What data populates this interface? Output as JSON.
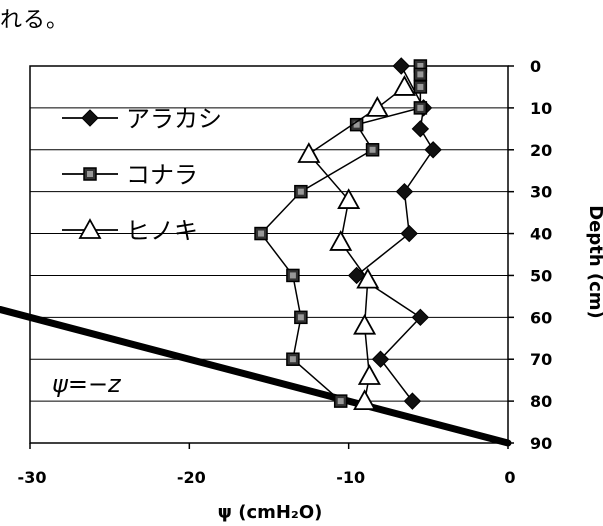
{
  "header_text": "れる。",
  "chart_data": {
    "type": "line",
    "orientation": "depth-profile",
    "xlabel": "ψ (cmH₂O)",
    "ylabel": "Depth (cm)",
    "xlim": [
      -30,
      0
    ],
    "ylim": [
      0,
      90
    ],
    "x_ticks": [
      "-30",
      "-20",
      "-10",
      "0"
    ],
    "y_ticks": [
      "0",
      "10",
      "20",
      "30",
      "40",
      "50",
      "60",
      "70",
      "80",
      "90"
    ],
    "grid": "horizontal",
    "legend_position": "top-left",
    "annotation": "ψ=−z",
    "reference_line": {
      "label": "ψ=−z",
      "points": [
        [
          -30,
          60
        ],
        [
          0,
          90
        ]
      ]
    },
    "series": [
      {
        "name": "アラカシ",
        "marker": "diamond",
        "points": [
          [
            -6.7,
            0
          ],
          [
            -5.3,
            10
          ],
          [
            -5.5,
            15
          ],
          [
            -4.7,
            20
          ],
          [
            -6.5,
            30
          ],
          [
            -6.2,
            40
          ],
          [
            -9.5,
            50
          ],
          [
            -5.5,
            60
          ],
          [
            -8.0,
            70
          ],
          [
            -6.0,
            80
          ]
        ]
      },
      {
        "name": "コナラ",
        "marker": "square",
        "points": [
          [
            -5.5,
            0
          ],
          [
            -5.5,
            2
          ],
          [
            -5.5,
            5
          ],
          [
            -5.5,
            10
          ],
          [
            -9.5,
            14
          ],
          [
            -8.5,
            20
          ],
          [
            -13.0,
            30
          ],
          [
            -15.5,
            40
          ],
          [
            -13.5,
            50
          ],
          [
            -13.0,
            60
          ],
          [
            -13.5,
            70
          ],
          [
            -10.5,
            80
          ]
        ]
      },
      {
        "name": "ヒノキ",
        "marker": "triangle",
        "points": [
          [
            -6.5,
            5
          ],
          [
            -8.2,
            10
          ],
          [
            -12.5,
            21
          ],
          [
            -10.0,
            32
          ],
          [
            -10.5,
            42
          ],
          [
            -8.8,
            51
          ],
          [
            -9.0,
            62
          ],
          [
            -8.7,
            74
          ],
          [
            -9.0,
            80
          ]
        ]
      }
    ]
  }
}
